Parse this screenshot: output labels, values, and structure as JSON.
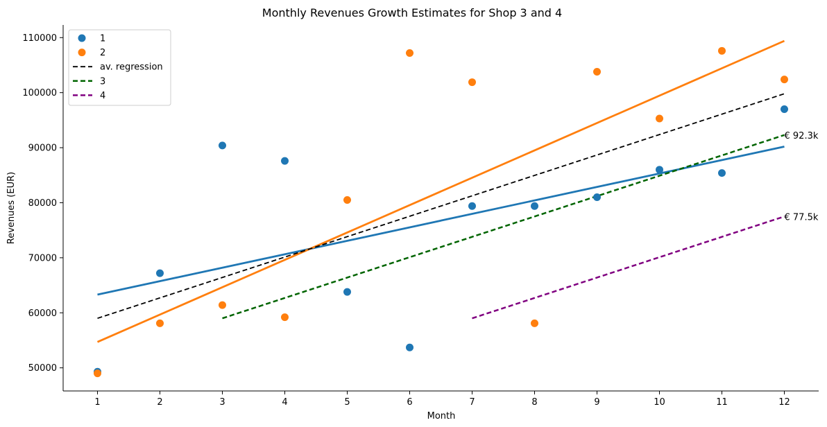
{
  "chart_data": {
    "type": "scatter",
    "title": "Monthly Revenues Growth Estimates for Shop 3 and 4",
    "xlabel": "Month",
    "ylabel": "Revenues (EUR)",
    "xlim": [
      0.45,
      12.55
    ],
    "ylim": [
      45800,
      112300
    ],
    "xticks": [
      1,
      2,
      3,
      4,
      5,
      6,
      7,
      8,
      9,
      10,
      11,
      12
    ],
    "yticks": [
      50000,
      60000,
      70000,
      80000,
      90000,
      100000,
      110000
    ],
    "grid": false,
    "legend_position": "top-left",
    "scatter_series": [
      {
        "name": "1",
        "color": "#1f77b4",
        "x": [
          1,
          2,
          3,
          4,
          5,
          6,
          7,
          8,
          9,
          10,
          11,
          12
        ],
        "y": [
          49300,
          67200,
          90400,
          87600,
          63800,
          53700,
          79400,
          79400,
          81000,
          86000,
          85400,
          97000
        ]
      },
      {
        "name": "2",
        "color": "#ff7f0e",
        "x": [
          1,
          2,
          3,
          4,
          5,
          6,
          7,
          8,
          9,
          10,
          11,
          12
        ],
        "y": [
          49000,
          58100,
          61400,
          59200,
          80500,
          107200,
          101900,
          58100,
          103800,
          95300,
          107600,
          102400
        ]
      }
    ],
    "line_series": [
      {
        "name": "",
        "color": "#1f77b4",
        "style": "solid",
        "x": [
          1,
          12
        ],
        "y": [
          63300,
          90200
        ]
      },
      {
        "name": "",
        "color": "#ff7f0e",
        "style": "solid",
        "x": [
          1,
          12
        ],
        "y": [
          54700,
          109400
        ]
      },
      {
        "name": "av. regression",
        "color": "#000000",
        "style": "dashed",
        "x": [
          1,
          12
        ],
        "y": [
          59000,
          99800
        ]
      },
      {
        "name": "3",
        "color": "#006400",
        "style": "dashed",
        "x": [
          3,
          12
        ],
        "y": [
          59000,
          92300
        ]
      },
      {
        "name": "4",
        "color": "#800080",
        "style": "dashed",
        "x": [
          7,
          12
        ],
        "y": [
          59000,
          77500
        ]
      }
    ],
    "legend": [
      {
        "label": "1",
        "kind": "marker",
        "color": "#1f77b4"
      },
      {
        "label": "2",
        "kind": "marker",
        "color": "#ff7f0e"
      },
      {
        "label": "av. regression",
        "kind": "line-dashed",
        "color": "#000000"
      },
      {
        "label": "3",
        "kind": "line-dashed",
        "color": "#006400"
      },
      {
        "label": "4",
        "kind": "line-dashed",
        "color": "#800080"
      }
    ],
    "annotations": [
      {
        "text": "€ 92.3k",
        "x": 12,
        "y": 92300
      },
      {
        "text": "€ 77.5k",
        "x": 12,
        "y": 77500
      }
    ]
  }
}
